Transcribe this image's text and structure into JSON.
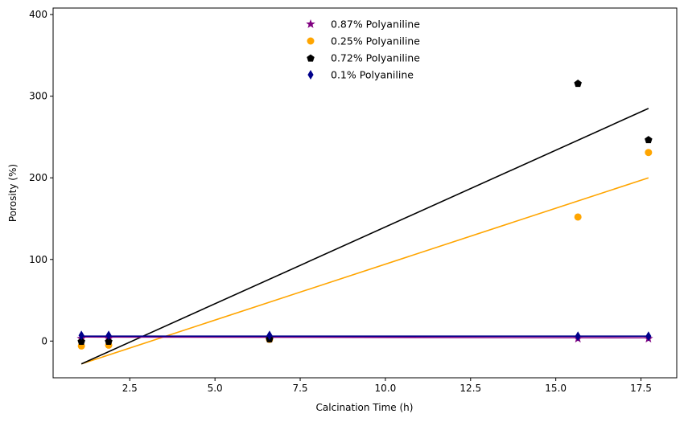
{
  "chart_data": {
    "type": "scatter",
    "xlabel": "Calcination Time (h)",
    "ylabel": "Porosity (%)",
    "xlim": [
      0.25,
      18.55
    ],
    "ylim": [
      -45,
      408
    ],
    "xticks": [
      2.5,
      5.0,
      7.5,
      10.0,
      12.5,
      15.0,
      17.5
    ],
    "xtick_labels": [
      "2.5",
      "5.0",
      "7.5",
      "10.0",
      "12.5",
      "15.0",
      "17.5"
    ],
    "yticks": [
      0,
      100,
      200,
      300,
      400
    ],
    "ytick_labels": [
      "0",
      "100",
      "200",
      "300",
      "400"
    ],
    "grid": false,
    "legend_position": "top-center",
    "series": [
      {
        "name": "0.87% Polyaniline",
        "marker": "star",
        "color": "#800080",
        "x": [
          1.08,
          1.88,
          6.6,
          15.65,
          17.72
        ],
        "y": [
          3,
          3,
          3,
          3,
          3
        ],
        "fit": {
          "x": [
            1.08,
            17.72
          ],
          "y": [
            5,
            4
          ]
        }
      },
      {
        "name": "0.25% Polyaniline",
        "marker": "circle",
        "color": "#ffa500",
        "x": [
          1.08,
          1.88,
          6.6,
          15.65,
          17.72
        ],
        "y": [
          -6,
          -5,
          2,
          152,
          231
        ],
        "fit": {
          "x": [
            1.08,
            17.72
          ],
          "y": [
            -28,
            200
          ]
        }
      },
      {
        "name": "0.72% Polyaniline",
        "marker": "pentagon",
        "color": "#000000",
        "x": [
          1.08,
          1.88,
          6.6,
          15.65,
          17.72
        ],
        "y": [
          0,
          0,
          3,
          316,
          247
        ],
        "fit": {
          "x": [
            1.08,
            17.72
          ],
          "y": [
            -28,
            285
          ]
        }
      },
      {
        "name": "0.1% Polyaniline",
        "marker": "thin_diamond",
        "color": "#00008b",
        "x": [
          1.08,
          1.88,
          6.6,
          15.65,
          17.72
        ],
        "y": [
          7,
          7,
          7,
          6,
          6
        ],
        "fit": {
          "x": [
            1.08,
            17.72
          ],
          "y": [
            6,
            6
          ]
        }
      }
    ]
  }
}
